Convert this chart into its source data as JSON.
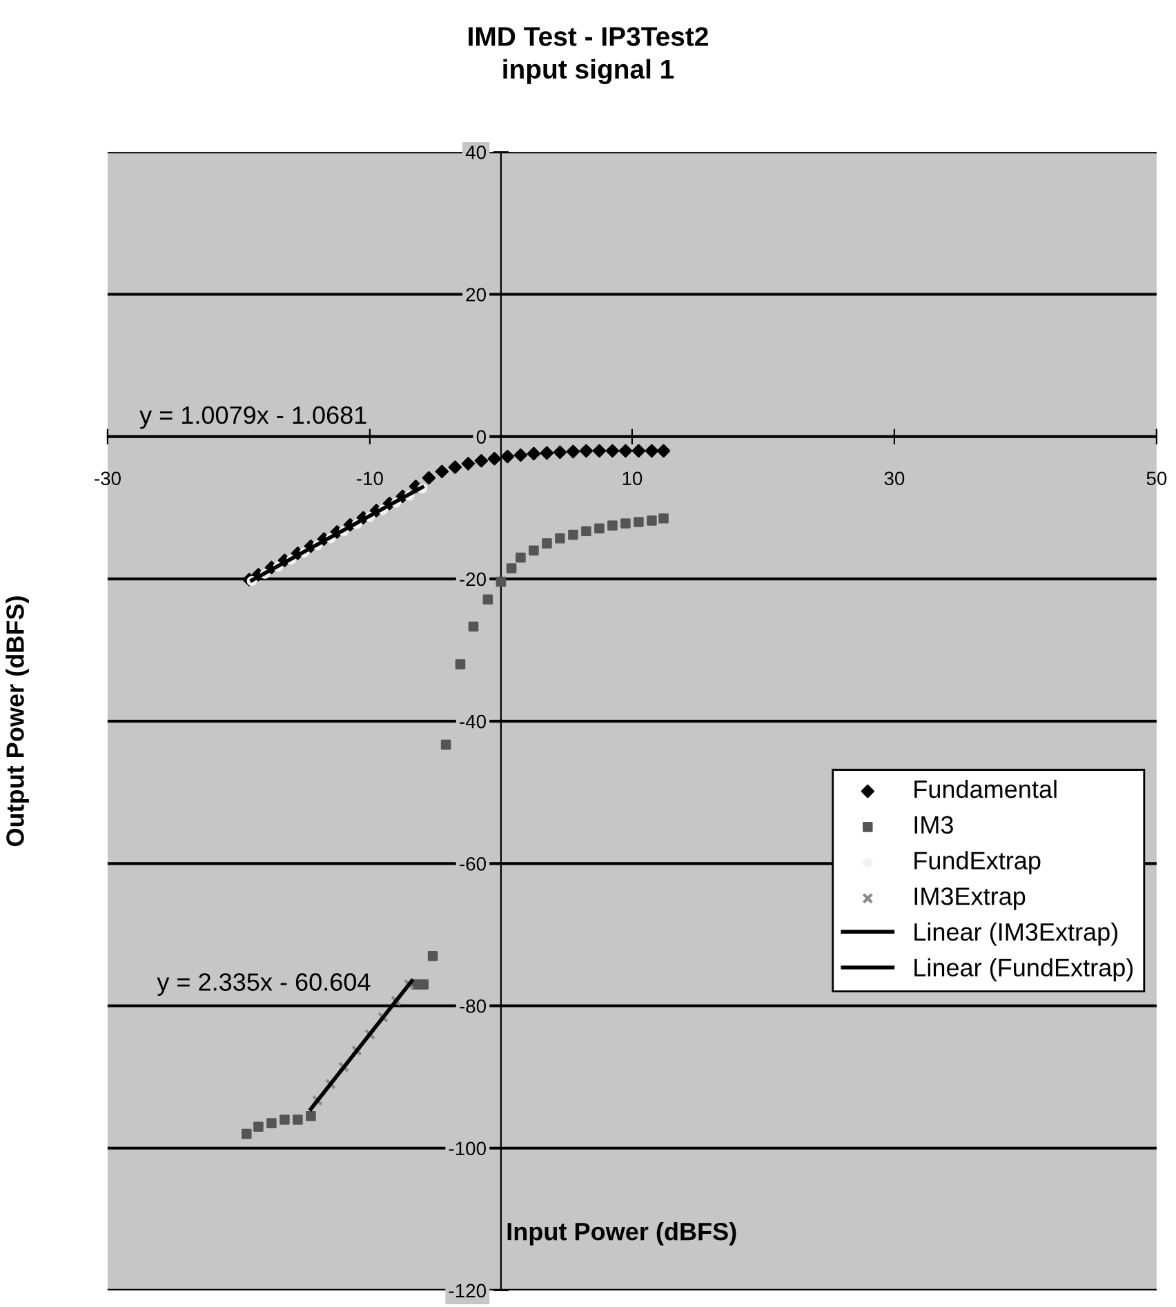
{
  "chart_data": {
    "type": "scatter",
    "title": "IMD Test - IP3Test2",
    "subtitle": "input signal 1",
    "xlabel": "Input Power (dBFS)",
    "ylabel": "Output Power (dBFS)",
    "xlim": [
      -30,
      50
    ],
    "xticks": [
      -30,
      -10,
      10,
      30,
      50
    ],
    "ylim": [
      -120,
      40
    ],
    "yticks": [
      -120,
      -100,
      -80,
      -60,
      -40,
      -20,
      0,
      20,
      40
    ],
    "grid": "y",
    "legend": "right",
    "annotations": [
      "y = 1.0079x - 1.0681",
      "y = 2.335x - 60.604"
    ],
    "series": [
      {
        "name": "Fundamental",
        "marker": "diamond",
        "color": "#000000",
        "x": [
          -19.2,
          -18.5,
          -17.5,
          -16.5,
          -15.5,
          -14.5,
          -13.5,
          -12.5,
          -11.5,
          -10.5,
          -9.5,
          -8.5,
          -7.5,
          -6.5,
          -5.5,
          -4.5,
          -3.5,
          -2.5,
          -1.5,
          -0.5,
          0.5,
          1.5,
          2.5,
          3.5,
          4.5,
          5.5,
          6.5,
          7.5,
          8.5,
          9.5,
          10.5,
          11.5,
          12.4
        ],
        "values": [
          -20.1,
          -19.4,
          -18.4,
          -17.4,
          -16.4,
          -15.4,
          -14.4,
          -13.4,
          -12.4,
          -11.4,
          -10.4,
          -9.4,
          -8.4,
          -7.0,
          -5.8,
          -4.9,
          -4.3,
          -3.8,
          -3.4,
          -3.1,
          -2.8,
          -2.6,
          -2.4,
          -2.3,
          -2.2,
          -2.1,
          -2.0,
          -2.0,
          -2.0,
          -2.0,
          -2.0,
          -2.0,
          -2.0
        ]
      },
      {
        "name": "IM3",
        "marker": "square",
        "color": "#555555",
        "x": [
          -19.4,
          -18.5,
          -17.5,
          -16.5,
          -15.5,
          -14.5,
          -6.5,
          -5.9,
          -5.2,
          -4.2,
          -3.1,
          -2.1,
          -1,
          0,
          0.8,
          1.5,
          2.5,
          3.5,
          4.5,
          5.5,
          6.5,
          7.5,
          8.5,
          9.5,
          10.5,
          11.5,
          12.4
        ],
        "values": [
          -98,
          -97,
          -96.5,
          -96,
          -96,
          -95.5,
          -77,
          -77,
          -73,
          -43.3,
          -32,
          -26.7,
          -22.9,
          -20.4,
          -18.5,
          -17,
          -16,
          -15,
          -14.3,
          -13.8,
          -13.3,
          -12.9,
          -12.5,
          -12.2,
          -12,
          -11.8,
          -11.5
        ]
      },
      {
        "name": "FundExtrap",
        "marker": "circle",
        "color": "#f2f2f2",
        "x": [
          -19,
          -18,
          -17,
          -16,
          -15,
          -14,
          -13,
          -12,
          -11,
          -10,
          -9,
          -8,
          -7,
          -6
        ],
        "values": [
          -20.3,
          -19.3,
          -18.3,
          -17.3,
          -16.3,
          -15.3,
          -14.3,
          -13.3,
          -12.3,
          -11.3,
          -10.3,
          -9.3,
          -8.3,
          -7.3
        ]
      },
      {
        "name": "IM3Extrap",
        "marker": "cross",
        "color": "#8a8a8a",
        "x": [
          -14,
          -13,
          -12,
          -11,
          -10,
          -9,
          -8,
          -7
        ],
        "values": [
          -93.3,
          -91,
          -88.6,
          -86.3,
          -84,
          -81.6,
          -79.3,
          -77
        ]
      },
      {
        "name": "Linear (IM3Extrap)",
        "type": "line",
        "line_style": "solid",
        "color": "#000000",
        "x": [
          -14.5,
          -6.8
        ],
        "values": [
          -94.5,
          -76.5
        ]
      },
      {
        "name": "Linear (FundExtrap)",
        "type": "line",
        "line_style": "solid",
        "color": "#000000",
        "x": [
          -19,
          -6
        ],
        "values": [
          -20.2,
          -7.1
        ]
      }
    ]
  }
}
